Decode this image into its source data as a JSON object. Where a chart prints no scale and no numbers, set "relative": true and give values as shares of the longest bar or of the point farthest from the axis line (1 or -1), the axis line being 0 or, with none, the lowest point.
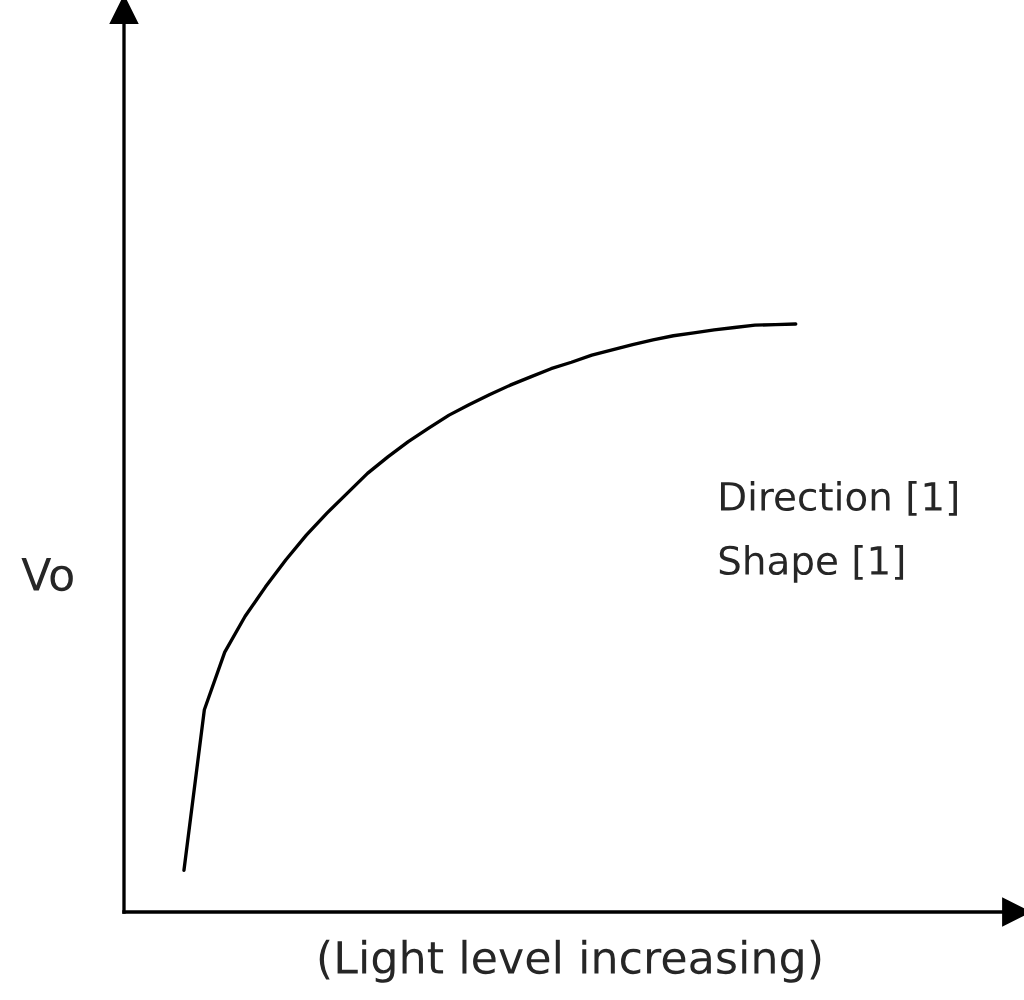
{
  "chart_data": {
    "type": "line",
    "relative": true,
    "xlabel": "(Light level increasing)",
    "ylabel": "Vo",
    "annotations": [
      "Direction [1]",
      "Shape [1]"
    ],
    "categories": [
      null,
      null,
      null,
      null,
      null,
      null,
      null,
      null,
      null,
      null,
      null,
      null,
      null,
      null,
      null,
      null,
      null,
      null,
      null,
      null,
      null,
      null,
      null,
      null,
      null,
      null,
      null,
      null,
      null,
      null,
      null
    ],
    "series": [
      {
        "color": "#000000",
        "values": [
          0.071,
          0.344,
          0.442,
          0.503,
          0.553,
          0.599,
          0.641,
          0.678,
          0.712,
          0.746,
          0.774,
          0.8,
          0.823,
          0.845,
          0.863,
          0.88,
          0.896,
          0.91,
          0.924,
          0.935,
          0.947,
          0.956,
          0.965,
          0.973,
          0.98,
          0.985,
          0.99,
          0.994,
          0.998,
          0.999,
          1
        ]
      }
    ],
    "legend": false,
    "marker": "none",
    "line_style": "solid"
  }
}
